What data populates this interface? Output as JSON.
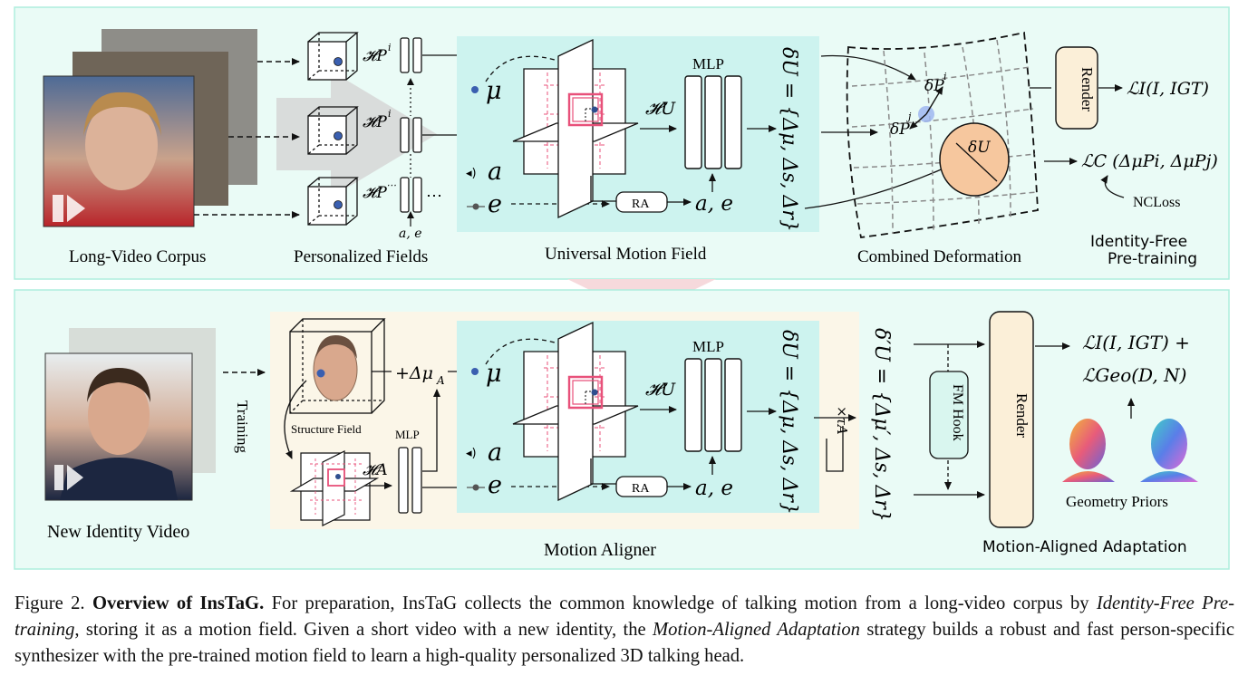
{
  "top": {
    "label_corpus": "Long-Video Corpus",
    "label_fields": "Personalized Fields",
    "label_umf": "Universal Motion Field",
    "label_combined": "Combined Deformation",
    "stage_title_line1": "Identity-Free",
    "stage_title_line2": "Pre-training",
    "mlp": "MLP",
    "ra": "RA",
    "render": "Render",
    "delta_u_vertical": "δU = {Δμ, Δs, Δr}",
    "mu": "μ",
    "a": "a",
    "e": "e",
    "ae": "a, e",
    "ae_small": "a, e",
    "h_u": "𝓗U",
    "h_p_i": "𝓗P",
    "h_p_sup": "i",
    "h_p_dots_sup": "⋯",
    "dots": "⋯",
    "delta_p_i": "δP",
    "delta_p_i_sup": "i",
    "delta_p_j": "δP",
    "delta_p_j_sup": "j",
    "delta_u": "δU",
    "loss_i": "ℒI(I, IGT)",
    "loss_c": "ℒC (ΔμPi, ΔμPj)",
    "ncloss": "NCLoss"
  },
  "bottom": {
    "label_new_id": "New Identity Video",
    "label_training": "Training",
    "label_structure": "Structure Field",
    "label_aligner": "Motion Aligner",
    "label_priors": "Geometry Priors",
    "stage_title": "Motion-Aligned Adaptation",
    "mlp_small": "MLP",
    "mlp": "MLP",
    "ra": "RA",
    "render": "Render",
    "fm_hook": "FM Hook",
    "plus_delta": "+Δμ",
    "plus_delta_sub": "A",
    "h_a": "𝓗A",
    "h_u": "𝓗U",
    "mu": "μ",
    "a": "a",
    "e": "e",
    "ae": "a, e",
    "delta_u_vertical": "δU = {Δμ, Δs, Δr}",
    "delta_u_prime_vertical": "δ′U = {Δμ′, Δs, Δr}",
    "times_tau": "×τA",
    "loss_line1": "ℒI(I, IGT) +",
    "loss_line2": "ℒGeo(D, N)"
  },
  "caption": {
    "fig_label": "Figure 2.",
    "title": "Overview of InsTaG.",
    "s1": "For preparation, InsTaG collects the common knowledge of talking motion from a long-video corpus by",
    "em1": "Identity-Free Pre-training",
    "s2": ", storing it as a motion field.  Given a short video with a new identity, the",
    "em2": "Motion-Aligned Adaptation",
    "s3": "strategy builds a robust and fast person-specific synthesizer with the pre-trained motion field to learn a high-quality personalized 3D talking head."
  },
  "colors": {
    "panel_bg": "#eafbf6",
    "panel_border": "#aeeedd",
    "umf_bg": "#cdf3ef",
    "aligner_bg": "#fbf6e8",
    "render_box": "#fbefd8",
    "fm_box": "#d9f6ef",
    "ellipse": "#f6c79e",
    "accent_pink": "#e8517a"
  }
}
